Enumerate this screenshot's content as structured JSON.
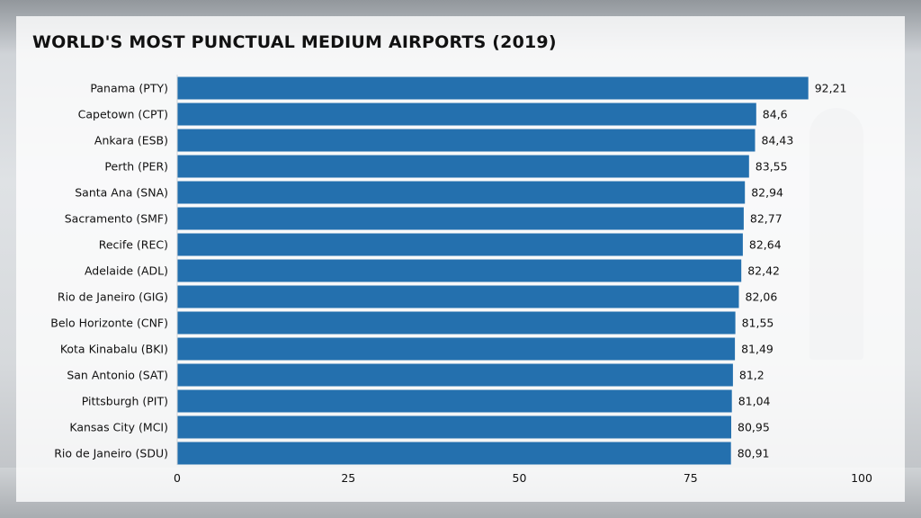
{
  "chart_data": {
    "type": "bar",
    "orientation": "horizontal",
    "title": "WORLD'S MOST PUNCTUAL MEDIUM AIRPORTS (2019)",
    "categories": [
      "Panama (PTY)",
      "Capetown (CPT)",
      "Ankara (ESB)",
      "Perth (PER)",
      "Santa Ana (SNA)",
      "Sacramento (SMF)",
      "Recife (REC)",
      "Adelaide (ADL)",
      "Rio de Janeiro (GIG)",
      "Belo Horizonte (CNF)",
      "Kota Kinabalu (BKI)",
      "San Antonio (SAT)",
      "Pittsburgh (PIT)",
      "Kansas City (MCI)",
      "Rio de Janeiro (SDU)"
    ],
    "values": [
      92.21,
      84.6,
      84.43,
      83.55,
      82.94,
      82.77,
      82.64,
      82.42,
      82.06,
      81.55,
      81.49,
      81.2,
      81.04,
      80.95,
      80.91
    ],
    "value_labels": [
      "92,21",
      "84,6",
      "84,43",
      "83,55",
      "82,94",
      "82,77",
      "82,64",
      "82,42",
      "82,06",
      "81,55",
      "81,49",
      "81,2",
      "81,04",
      "80,95",
      "80,91"
    ],
    "xticks": [
      0,
      25,
      50,
      75,
      100
    ],
    "xlim": [
      0,
      100
    ],
    "bar_color": "#2470ae",
    "grid": false,
    "legend": "none"
  }
}
